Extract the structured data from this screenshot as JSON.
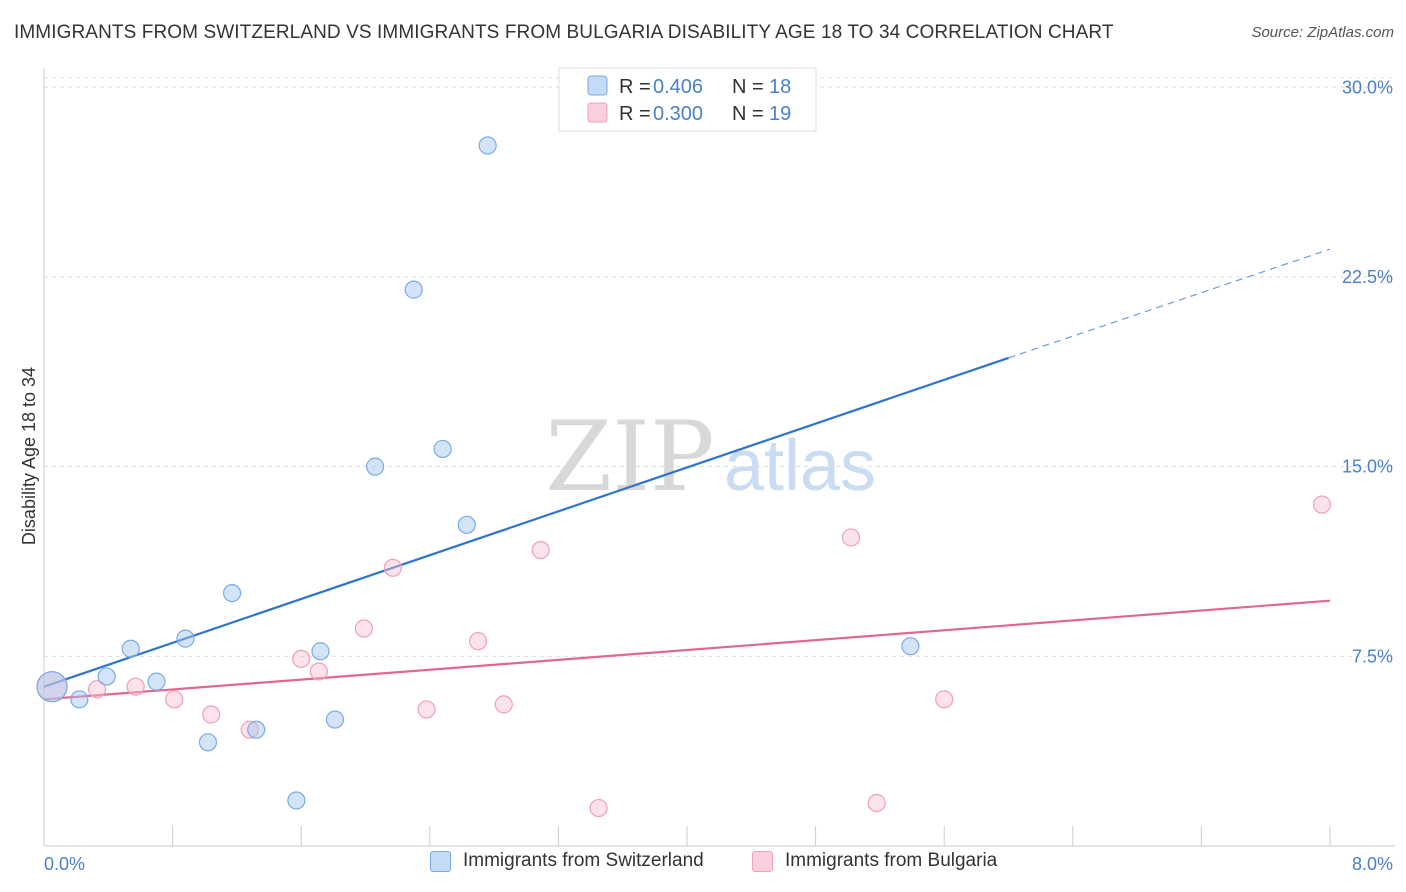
{
  "title": "IMMIGRANTS FROM SWITZERLAND VS IMMIGRANTS FROM BULGARIA DISABILITY AGE 18 TO 34 CORRELATION CHART",
  "source": "Source: ZipAtlas.com",
  "watermark": {
    "zip": "ZIP",
    "atlas": "atlas"
  },
  "colors": {
    "blue": "#6ea3e0",
    "blue_line": "#2f73d0",
    "pink": "#f0a0b8",
    "pink_line": "#e06890",
    "tick_blue": "#4a80c8"
  },
  "legend": [
    {
      "r_label": "R = ",
      "r_value": "0.406",
      "n_label": "N = ",
      "n_value": "18"
    },
    {
      "r_label": "R = ",
      "r_value": "0.300",
      "n_label": "N = ",
      "n_value": "19"
    }
  ],
  "chart_data": {
    "type": "scatter",
    "title": "IMMIGRANTS FROM SWITZERLAND VS IMMIGRANTS FROM BULGARIA DISABILITY AGE 18 TO 34 CORRELATION CHART",
    "xlabel": "",
    "ylabel": "Disability Age 18 to 34",
    "xlim": [
      0,
      8.0
    ],
    "ylim": [
      0,
      31.0
    ],
    "x_tick_labels": [
      "0.0%",
      "8.0%"
    ],
    "y_ticks": [
      7.5,
      15.0,
      22.5,
      30.0
    ],
    "y_tick_labels": [
      "7.5%",
      "15.0%",
      "22.5%",
      "30.0%"
    ],
    "series": [
      {
        "name": "Immigrants from Switzerland",
        "color": "#6ea3e0",
        "points": [
          [
            0.05,
            6.3
          ],
          [
            0.22,
            5.8
          ],
          [
            0.39,
            6.7
          ],
          [
            0.54,
            7.8
          ],
          [
            0.7,
            6.5
          ],
          [
            0.88,
            8.2
          ],
          [
            1.02,
            4.1
          ],
          [
            1.17,
            10.0
          ],
          [
            1.32,
            4.6
          ],
          [
            1.57,
            1.8
          ],
          [
            1.72,
            7.7
          ],
          [
            1.81,
            5.0
          ],
          [
            2.06,
            15.0
          ],
          [
            2.3,
            22.0
          ],
          [
            2.48,
            15.7
          ],
          [
            2.63,
            12.7
          ],
          [
            2.76,
            27.7
          ],
          [
            5.39,
            7.9
          ]
        ],
        "trend": {
          "x0": 0.0,
          "y0": 6.3,
          "x1": 6.0,
          "y1": 19.3,
          "x_dash_end": 8.0,
          "y_dash_end": 23.6
        }
      },
      {
        "name": "Immigrants from Bulgaria",
        "color": "#f0a0b8",
        "points": [
          [
            0.05,
            6.3
          ],
          [
            0.33,
            6.2
          ],
          [
            0.57,
            6.3
          ],
          [
            0.81,
            5.8
          ],
          [
            1.04,
            5.2
          ],
          [
            1.28,
            4.6
          ],
          [
            1.6,
            7.4
          ],
          [
            1.71,
            6.9
          ],
          [
            1.99,
            8.6
          ],
          [
            2.17,
            11.0
          ],
          [
            2.38,
            5.4
          ],
          [
            2.7,
            8.1
          ],
          [
            2.86,
            5.6
          ],
          [
            3.09,
            11.7
          ],
          [
            3.45,
            1.5
          ],
          [
            5.02,
            12.2
          ],
          [
            5.18,
            1.7
          ],
          [
            5.6,
            5.8
          ],
          [
            7.95,
            13.5
          ]
        ],
        "trend": {
          "x0": 0.0,
          "y0": 5.8,
          "x1": 8.0,
          "y1": 9.7
        }
      }
    ]
  }
}
